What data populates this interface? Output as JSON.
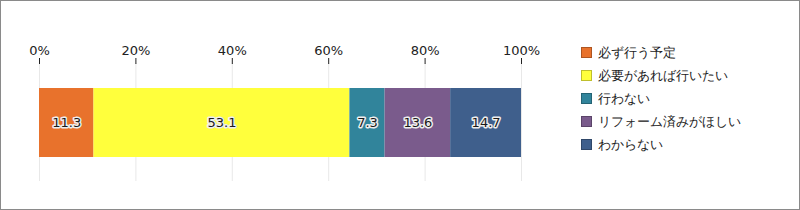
{
  "chart_data": {
    "type": "bar",
    "orientation": "horizontal",
    "stacked": true,
    "data_labels": true,
    "grid": true,
    "legend": "right",
    "categories": [
      null
    ],
    "series": [
      {
        "name": "必ず行う予定",
        "color": "#e8722c",
        "values": [
          11.3
        ]
      },
      {
        "name": "必要があれば行いたい",
        "color": "#ffff3c",
        "values": [
          53.1
        ]
      },
      {
        "name": "行わない",
        "color": "#31849b",
        "values": [
          7.3
        ]
      },
      {
        "name": "リフォーム済みがほしい",
        "color": "#7a5b8c",
        "values": [
          13.6
        ]
      },
      {
        "name": "わからない",
        "color": "#3f5f8c",
        "values": [
          14.7
        ]
      }
    ],
    "xlim": [
      0,
      100
    ],
    "xticks": [
      {
        "value": 0,
        "label": "0%"
      },
      {
        "value": 20,
        "label": "20%"
      },
      {
        "value": 40,
        "label": "40%"
      },
      {
        "value": 60,
        "label": "60%"
      },
      {
        "value": 80,
        "label": "80%"
      },
      {
        "value": 100,
        "label": "100%"
      }
    ]
  }
}
